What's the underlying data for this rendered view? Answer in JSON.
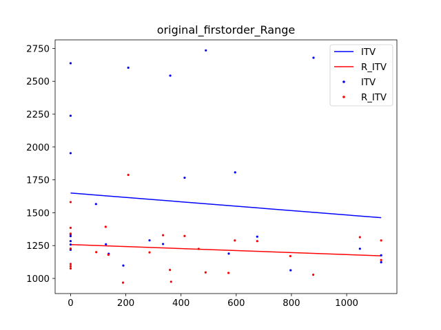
{
  "chart_data": {
    "type": "scatter",
    "title": "original_firstorder_Range",
    "xlabel": "",
    "ylabel": "",
    "xlim": [
      -56,
      1182
    ],
    "ylim": [
      885,
      2815
    ],
    "xticks": [
      0,
      200,
      400,
      600,
      800,
      1000
    ],
    "yticks": [
      1000,
      1250,
      1500,
      1750,
      2000,
      2250,
      2500,
      2750
    ],
    "grid": false,
    "legend_placement": "top-right",
    "legend": [
      "ITV",
      "R_ITV",
      "ITV",
      "R_ITV"
    ],
    "colors": {
      "ITV": "#0000ff",
      "R_ITV": "#ff0000"
    },
    "series": [
      {
        "name": "ITV",
        "kind": "line",
        "color": "#0000ff",
        "x": [
          0,
          1125
        ],
        "y": [
          1650,
          1462
        ]
      },
      {
        "name": "R_ITV",
        "kind": "line",
        "color": "#ff0000",
        "x": [
          0,
          1125
        ],
        "y": [
          1258,
          1172
        ]
      },
      {
        "name": "ITV",
        "kind": "scatter",
        "color": "#0000ff",
        "x": [
          0,
          0,
          0,
          0,
          0,
          0,
          0,
          0,
          92,
          128,
          138,
          191,
          209,
          286,
          335,
          361,
          413,
          490,
          573,
          596,
          676,
          797,
          880,
          1048,
          1125,
          1125
        ],
        "y": [
          2637,
          2238,
          1953,
          1336,
          1322,
          1284,
          1258,
          1218,
          1566,
          1260,
          1188,
          1098,
          2603,
          1290,
          1262,
          2543,
          1766,
          2735,
          1189,
          1807,
          1318,
          1062,
          2679,
          1226,
          1176,
          1123
        ]
      },
      {
        "name": "R_ITV",
        "kind": "scatter",
        "color": "#ff0000",
        "x": [
          0,
          0,
          0,
          0,
          0,
          0,
          0,
          93,
          127,
          137,
          190,
          209,
          286,
          335,
          360,
          364,
          413,
          464,
          489,
          572,
          595,
          676,
          796,
          879,
          1048,
          1125,
          1125
        ],
        "y": [
          1581,
          1385,
          1341,
          1227,
          1110,
          1093,
          1076,
          1200,
          1393,
          1180,
          968,
          1788,
          1198,
          1329,
          1065,
          975,
          1323,
          1225,
          1046,
          1042,
          1289,
          1284,
          1170,
          1028,
          1314,
          1289,
          1140
        ]
      }
    ]
  }
}
